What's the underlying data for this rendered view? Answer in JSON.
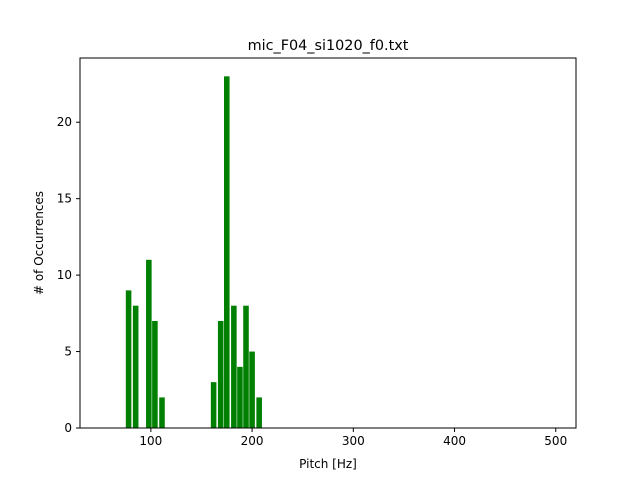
{
  "chart_data": {
    "type": "bar",
    "title": "mic_F04_si1020_f0.txt",
    "xlabel": "Pitch [Hz]",
    "ylabel": "# of Occurrences",
    "xlim": [
      30,
      520
    ],
    "ylim": [
      0,
      24.2
    ],
    "xticks": [
      100,
      200,
      300,
      400,
      500
    ],
    "yticks": [
      0,
      5,
      10,
      15,
      20
    ],
    "bar_width": 5.5,
    "bar_color": "#008000",
    "grid": false,
    "x": [
      78,
      85,
      98,
      104,
      111,
      162,
      169,
      175,
      182,
      188,
      194,
      200,
      207
    ],
    "values": [
      9,
      8,
      11,
      7,
      2,
      3,
      7,
      23,
      8,
      4,
      8,
      5,
      2
    ]
  }
}
